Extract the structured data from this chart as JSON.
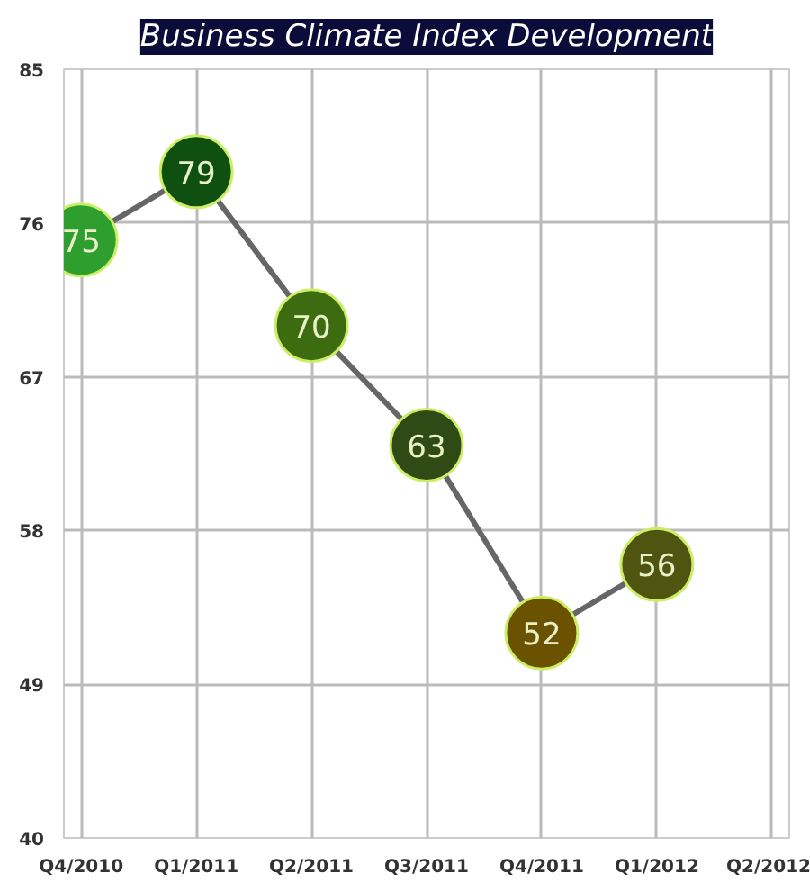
{
  "chart_data": {
    "type": "line",
    "title": "Business Climate Index Development",
    "categories": [
      "Q4/2010",
      "Q1/2011",
      "Q2/2011",
      "Q3/2011",
      "Q4/2011",
      "Q1/2012",
      "Q2/2012"
    ],
    "values": [
      75,
      79,
      70,
      63,
      52,
      56,
      null
    ],
    "colors": [
      "#2e9e2e",
      "#0f4f0f",
      "#3d6b10",
      "#2f4a14",
      "#6b5200",
      "#4f5410",
      null
    ],
    "color": "#666666",
    "ylim": [
      40,
      85
    ],
    "yticks": [
      40,
      49,
      58,
      67,
      76,
      85
    ],
    "grid": true,
    "marker": "circle",
    "data_labels": true
  }
}
